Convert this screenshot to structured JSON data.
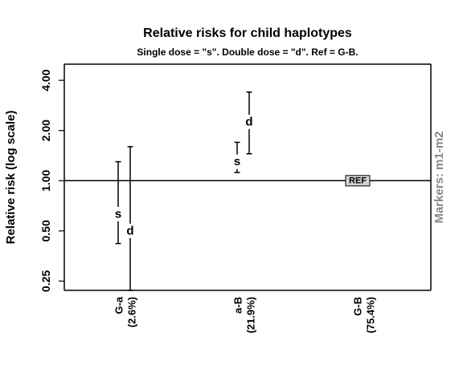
{
  "chart_data": {
    "type": "errorbar",
    "title": "Relative risks for child haplotypes",
    "subtitle": "Single dose = \"s\".   Double dose = \"d\".    Ref =  G-B.",
    "ylabel": "Relative risk (log scale)",
    "y_scale": "log",
    "ylim": [
      0.22,
      5.0
    ],
    "y_ticks": [
      0.25,
      0.5,
      1.0,
      2.0,
      4.0
    ],
    "y_tick_labels": [
      "0.25",
      "0.50",
      "1.00",
      "2.00",
      "4.00"
    ],
    "reference_line": 1.0,
    "side_label": "Markers: m1-m2",
    "categories": [
      {
        "name": "G-a",
        "freq": "(2.6%)"
      },
      {
        "name": "a-B",
        "freq": "(21.9%)"
      },
      {
        "name": "G-B",
        "freq": "(75.4%)"
      }
    ],
    "estimates": [
      {
        "category": 0,
        "label": "s",
        "estimate": 0.63,
        "lower": 0.42,
        "upper": 1.3
      },
      {
        "category": 0,
        "label": "d",
        "estimate": 0.5,
        "lower": 0.22,
        "upper": 1.6
      },
      {
        "category": 1,
        "label": "s",
        "estimate": 1.3,
        "lower": 1.12,
        "upper": 1.7
      },
      {
        "category": 1,
        "label": "d",
        "estimate": 2.25,
        "lower": 1.45,
        "upper": 3.4
      }
    ],
    "reference": {
      "category": 2,
      "label": "REF",
      "estimate": 1.0
    }
  }
}
